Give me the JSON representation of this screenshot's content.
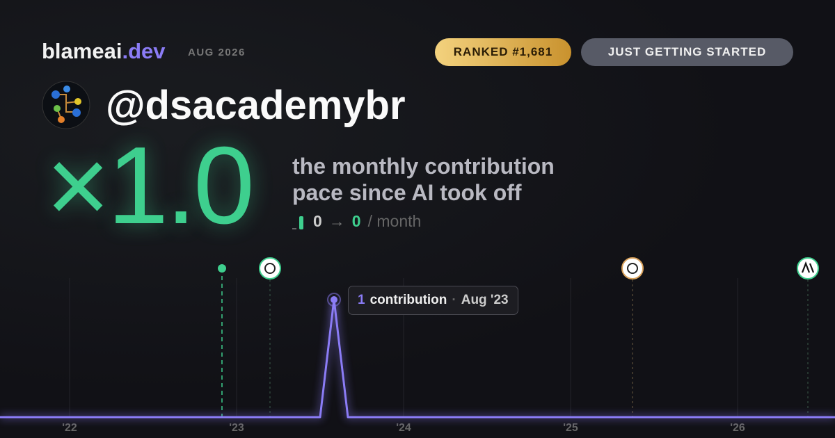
{
  "brand": {
    "name": "blameai",
    "tld": ".dev"
  },
  "date": "AUG 2026",
  "badges": {
    "rank": "RANKED #1,681",
    "status": "JUST GETTING STARTED"
  },
  "handle": "@dsacademybr",
  "multiplier": "×1.0",
  "tagline": [
    "the monthly contribution",
    "pace since AI took off"
  ],
  "pace": {
    "from": 0,
    "arrow": "→",
    "to": 0,
    "unit": "/ month"
  },
  "tooltip": {
    "count": 1,
    "label": "contribution",
    "separator": "·",
    "date": "Aug '23"
  },
  "chart_data": {
    "type": "line",
    "color": "#8b7cf6",
    "categories": [
      null,
      null,
      null,
      null,
      null,
      "'22",
      null,
      null,
      null,
      null,
      null,
      null,
      null,
      null,
      null,
      null,
      null,
      "'23",
      null,
      null,
      null,
      null,
      null,
      null,
      null,
      null,
      null,
      null,
      null,
      "'24",
      null,
      null,
      null,
      null,
      null,
      null,
      null,
      null,
      null,
      null,
      null,
      "'25",
      null,
      null,
      null,
      null,
      null,
      null,
      null,
      null,
      null,
      null,
      null,
      "'26",
      null,
      null,
      null,
      null,
      null,
      null,
      null
    ],
    "values": [
      0,
      0,
      0,
      0,
      0,
      0,
      0,
      0,
      0,
      0,
      0,
      0,
      0,
      0,
      0,
      0,
      0,
      0,
      0,
      0,
      0,
      0,
      0,
      0,
      1,
      0,
      0,
      0,
      0,
      0,
      0,
      0,
      0,
      0,
      0,
      0,
      0,
      0,
      0,
      0,
      0,
      0,
      0,
      0,
      0,
      0,
      0,
      0,
      0,
      0,
      0,
      0,
      0,
      0,
      0,
      0,
      0,
      0,
      0,
      0,
      0
    ],
    "ylim": [
      0,
      1
    ]
  }
}
